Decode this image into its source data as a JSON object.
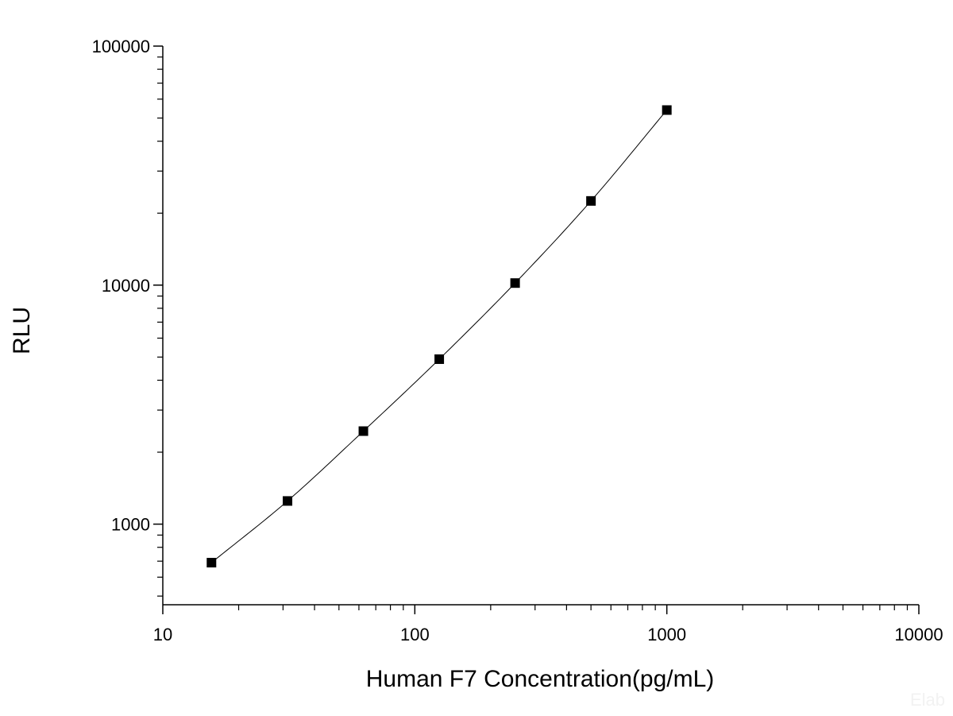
{
  "chart_data": {
    "type": "line",
    "title": "",
    "xlabel": "Human F7 Concentration(pg/mL)",
    "ylabel": "RLU",
    "x_scale": "log",
    "y_scale": "log",
    "xlim": [
      10,
      10000
    ],
    "ylim": [
      460,
      100000
    ],
    "x_ticks": [
      10,
      100,
      1000,
      10000
    ],
    "x_tick_labels": [
      "10",
      "100",
      "1000",
      "10000"
    ],
    "y_ticks": [
      1000,
      10000,
      100000
    ],
    "y_tick_labels": [
      "1000",
      "10000",
      "100000"
    ],
    "grid": false,
    "legend": "none",
    "marker": "square",
    "series": [
      {
        "x": [
          15.6,
          31.25,
          62.5,
          125,
          250,
          500,
          1000
        ],
        "y": [
          690,
          1250,
          2450,
          4900,
          10200,
          22500,
          54000
        ],
        "color": "#000000"
      }
    ],
    "watermark": "Elab"
  }
}
